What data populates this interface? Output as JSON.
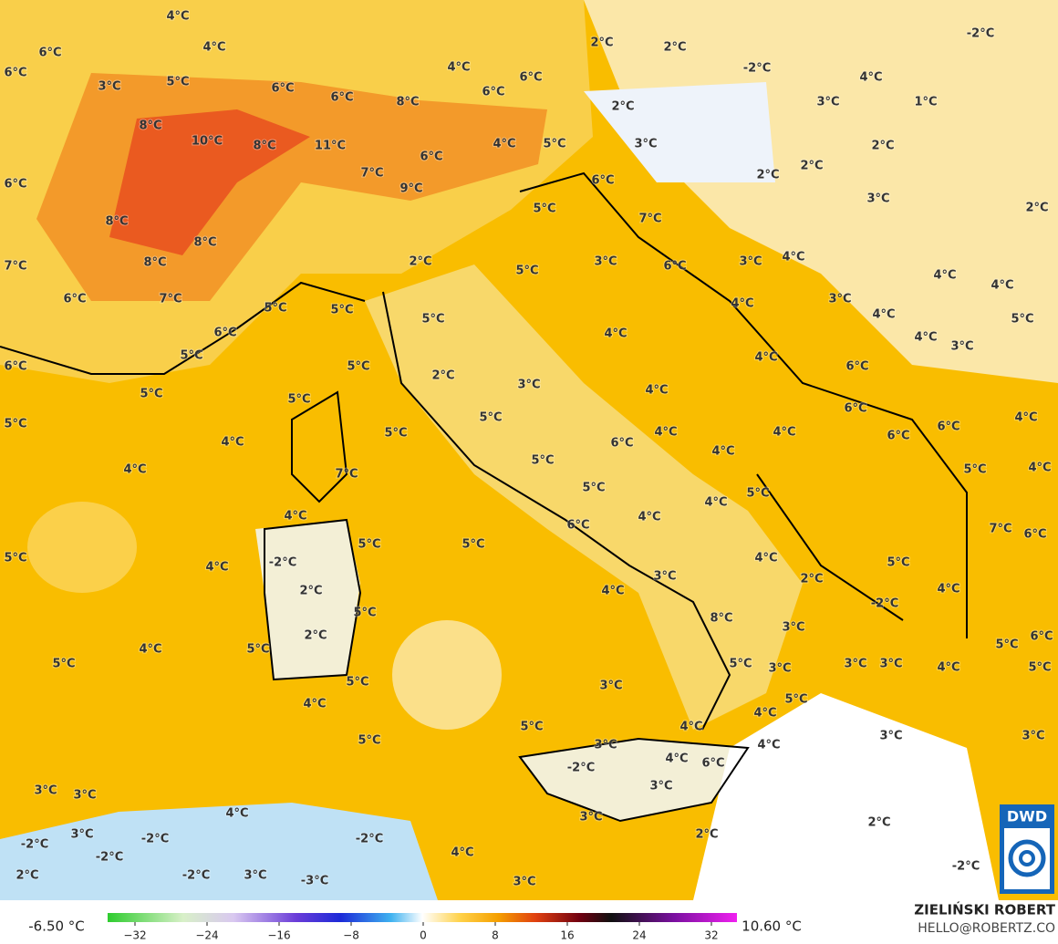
{
  "map": {
    "labels": [
      "4°C",
      "6°C",
      "4°C",
      "6°C",
      "3°C",
      "5°C",
      "6°C",
      "6°C",
      "4°C",
      "6°C",
      "6°C",
      "8°C",
      "2°C",
      "2°C",
      "-2°C",
      "2°C",
      "-2°C",
      "4°C",
      "3°C",
      "1°C",
      "8°C",
      "10°C",
      "8°C",
      "11°C",
      "4°C",
      "5°C",
      "6°C",
      "7°C",
      "9°C",
      "3°C",
      "2°C",
      "2°C",
      "2°C",
      "6°C",
      "6°C",
      "3°C",
      "2°C",
      "8°C",
      "5°C",
      "7°C",
      "8°C",
      "8°C",
      "7°C",
      "2°C",
      "5°C",
      "3°C",
      "3°C",
      "4°C",
      "6°C",
      "4°C",
      "4°C",
      "6°C",
      "7°C",
      "5°C",
      "5°C",
      "3°C",
      "4°C",
      "4°C",
      "5°C",
      "6°C",
      "5°C",
      "4°C",
      "4°C",
      "3°C",
      "5°C",
      "6°C",
      "5°C",
      "4°C",
      "6°C",
      "2°C",
      "5°C",
      "5°C",
      "3°C",
      "4°C",
      "6°C",
      "4°C",
      "5°C",
      "5°C",
      "5°C",
      "4°C",
      "4°C",
      "6°C",
      "6°C",
      "4°C",
      "6°C",
      "4°C",
      "4°C",
      "7°C",
      "5°C",
      "5°C",
      "4°C",
      "5°C",
      "5°C",
      "4°C",
      "4°C",
      "4°C",
      "6°C",
      "7°C",
      "6°C",
      "5°C",
      "-2°C",
      "5°C",
      "5°C",
      "4°C",
      "4°C",
      "5°C",
      "2°C",
      "3°C",
      "2°C",
      "4°C",
      "4°C",
      "-2°C",
      "5°C",
      "8°C",
      "3°C",
      "2°C",
      "6°C",
      "5°C",
      "5°C",
      "4°C",
      "5°C",
      "5°C",
      "3°C",
      "3°C",
      "3°C",
      "4°C",
      "5°C",
      "5°C",
      "3°C",
      "5°C",
      "4°C",
      "4°C",
      "4°C",
      "5°C",
      "5°C",
      "3°C",
      "3°C",
      "4°C",
      "3°C",
      "4°C",
      "-2°C",
      "6°C",
      "3°C",
      "3°C",
      "3°C",
      "4°C",
      "3°C",
      "2°C",
      "2°C",
      "3°C",
      "-2°C",
      "-2°C",
      "-2°C",
      "-2°C",
      "4°C",
      "-2°C",
      "2°C",
      "-2°C",
      "3°C",
      "-3°C",
      "3°C"
    ],
    "colorbar": {
      "min_label": "-6.50 °C",
      "max_label": "10.60 °C",
      "ticks": [
        {
          "value": -32,
          "label": "−32"
        },
        {
          "value": -24,
          "label": "−24"
        },
        {
          "value": -16,
          "label": "−16"
        },
        {
          "value": -8,
          "label": "−8"
        },
        0,
        8,
        16,
        24,
        32
      ]
    },
    "author": "ZIELIŃSKI ROBERT",
    "email": "HELLO@ROBERTZ.CO",
    "logo": "DWD"
  }
}
